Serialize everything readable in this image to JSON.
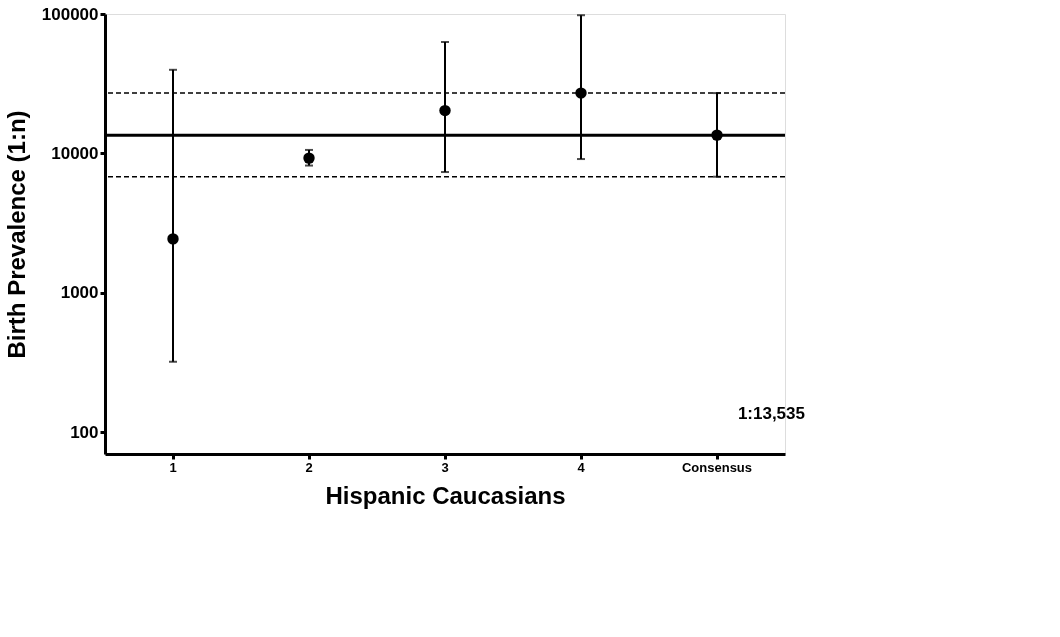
{
  "chart_data": {
    "type": "scatter",
    "xlabel": "Hispanic Caucasians",
    "ylabel": "Birth Prevalence (1:n)",
    "categories": [
      "1",
      "2",
      "3",
      "4",
      "Consensus"
    ],
    "series": [
      {
        "color": "#000000",
        "values": [
          2440,
          9260,
          20300,
          27100,
          13535
        ],
        "errors": [
          [
            321,
            39800
          ],
          [
            8190,
            10600
          ],
          [
            7360,
            63000
          ],
          [
            9120,
            98000
          ],
          [
            6810,
            27100
          ]
        ]
      }
    ],
    "log": "y",
    "ylim": [
      70,
      100000
    ],
    "yticks": [
      100,
      1000,
      10000,
      100000
    ],
    "ref_lines": [
      {
        "axis": "y",
        "value": 13535,
        "line_style": "solid"
      },
      {
        "axis": "y",
        "value": 27100,
        "line_style": "dashed"
      },
      {
        "axis": "y",
        "value": 6810,
        "line_style": "dashed"
      }
    ],
    "annotations": [
      "1:13,535"
    ],
    "grid": false,
    "marker": "circle"
  }
}
